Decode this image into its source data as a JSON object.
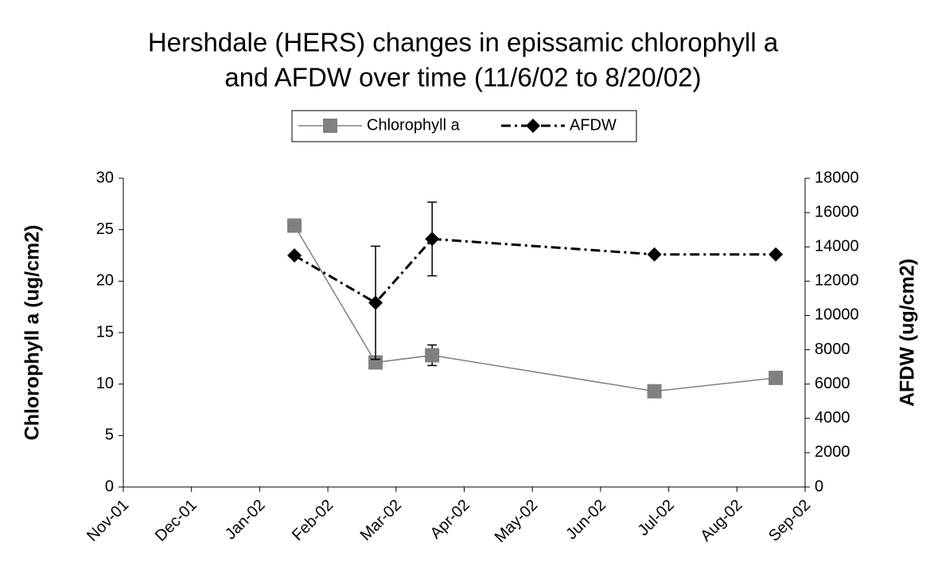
{
  "chart_data": {
    "type": "line",
    "title": [
      "Hershdale (HERS) changes in epissamic chlorophyll a",
      "and AFDW over time (11/6/02 to 8/20/02)"
    ],
    "y_label": "Chlorophyll a  (ug/cm2)",
    "y2_label": "AFDW (ug/cm2)",
    "x": [
      2.51,
      3.7,
      4.53,
      7.79,
      9.57
    ],
    "xlim": [
      0,
      10
    ],
    "xticks": [
      {
        "value": 0,
        "label": "Nov-01"
      },
      {
        "value": 1,
        "label": "Dec-01"
      },
      {
        "value": 2,
        "label": "Jan-02"
      },
      {
        "value": 3,
        "label": "Feb-02"
      },
      {
        "value": 4,
        "label": "Mar-02"
      },
      {
        "value": 5,
        "label": "Apr-02"
      },
      {
        "value": 6,
        "label": "May-02"
      },
      {
        "value": 7,
        "label": "Jun-02"
      },
      {
        "value": 8,
        "label": "Jul-02"
      },
      {
        "value": 9,
        "label": "Aug-02"
      },
      {
        "value": 10,
        "label": "Sep-02"
      }
    ],
    "ylim": [
      0,
      30
    ],
    "yticks": [
      0,
      5,
      10,
      15,
      20,
      25,
      30
    ],
    "y2lim": [
      0,
      18000
    ],
    "y2ticks": [
      0,
      2000,
      4000,
      6000,
      8000,
      10000,
      12000,
      14000,
      16000,
      18000
    ],
    "grid": false,
    "legend": "top",
    "series": [
      {
        "name": "Chlorophyll a",
        "color": "#808080",
        "line_style": "solid",
        "marker": "square",
        "values": [
          25.4,
          12.1,
          12.8,
          9.3,
          10.6
        ],
        "errors": [
          null,
          null,
          1.0,
          null,
          null
        ]
      },
      {
        "name": "AFDW",
        "color": "#000000",
        "line_style": "dashdot",
        "marker": "diamond",
        "axis": "y2",
        "values": [
          13500,
          10740,
          14460,
          13560,
          13560
        ],
        "errors": [
          null,
          3300,
          2150,
          null,
          null
        ]
      }
    ]
  }
}
